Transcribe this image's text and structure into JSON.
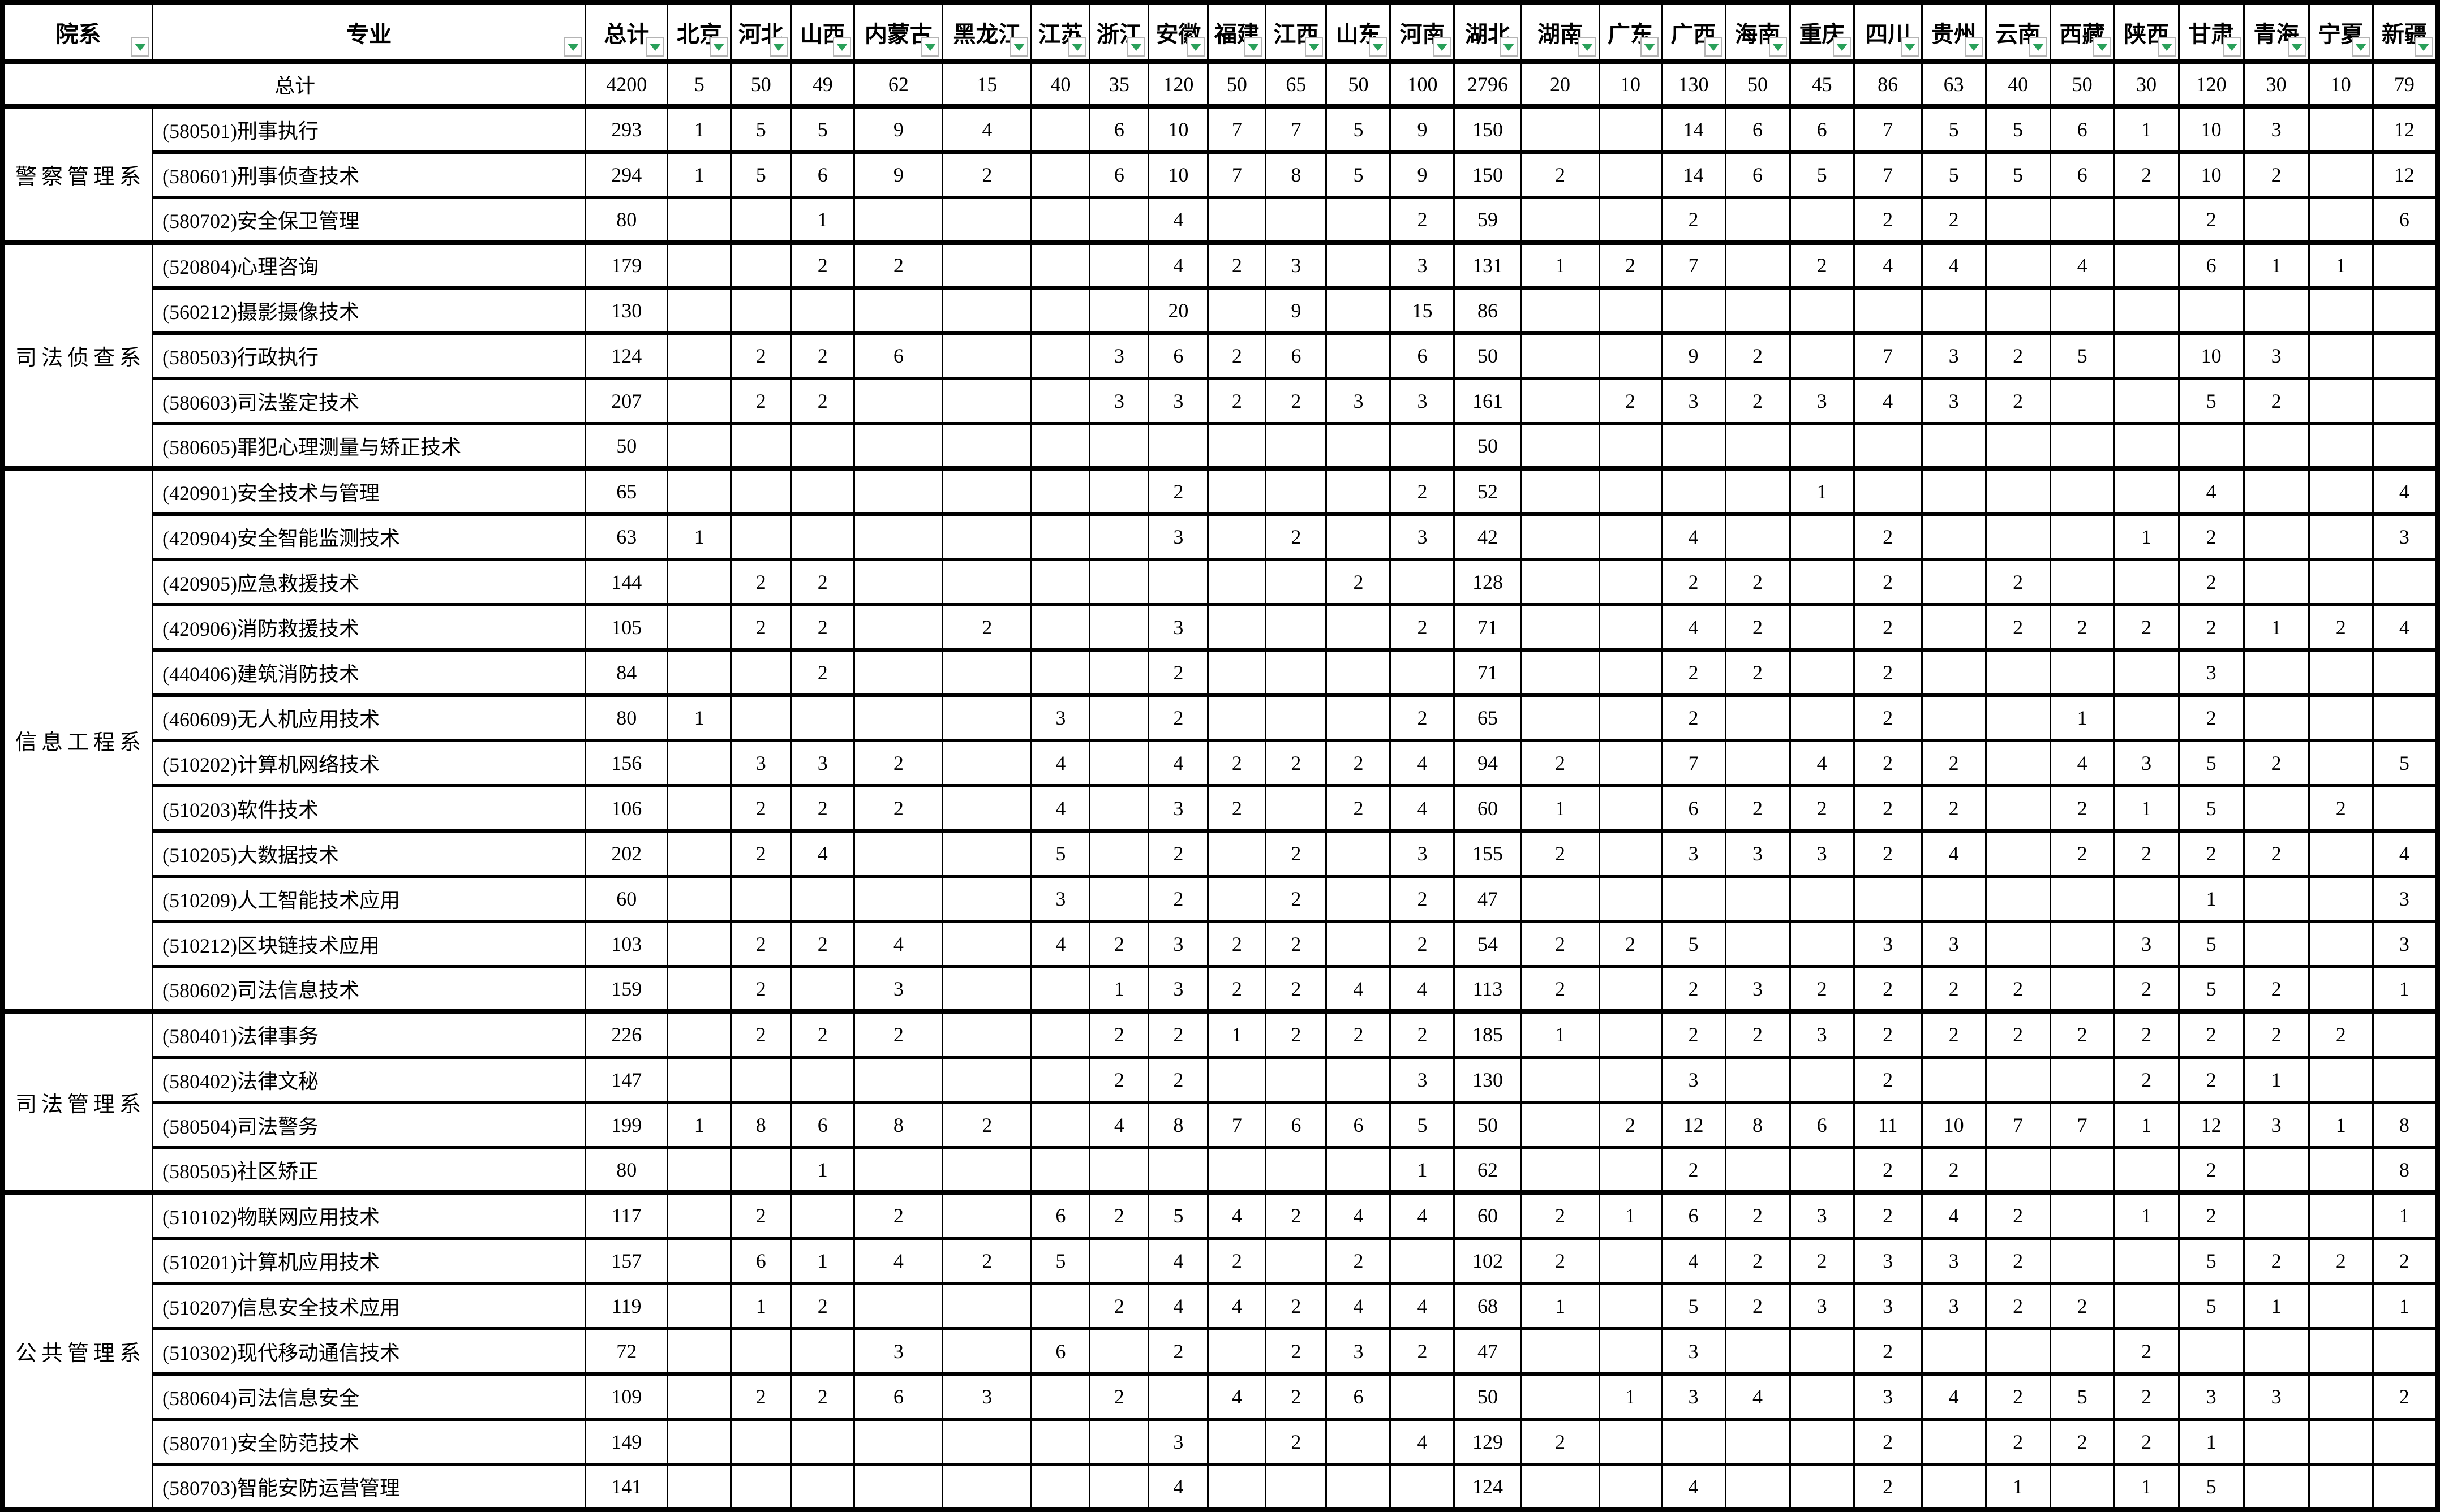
{
  "colors": {
    "filter_arrow": "#2aa05a",
    "border": "#000000",
    "background": "#ffffff"
  },
  "header": {
    "dept": "院系",
    "major": "专业",
    "total": "总计",
    "provinces": [
      "北京",
      "河北",
      "山西",
      "内蒙古",
      "黑龙江",
      "江苏",
      "浙江",
      "安徽",
      "福建",
      "江西",
      "山东",
      "河南",
      "湖北",
      "湖南",
      "广东",
      "广西",
      "海南",
      "重庆",
      "四川",
      "贵州",
      "云南",
      "西藏",
      "陕西",
      "甘肃",
      "青海",
      "宁夏",
      "新疆"
    ]
  },
  "total_row": {
    "label": "总计",
    "total": 4200,
    "values": [
      5,
      50,
      49,
      62,
      15,
      40,
      35,
      120,
      50,
      65,
      50,
      100,
      2796,
      20,
      10,
      130,
      50,
      45,
      86,
      63,
      40,
      50,
      30,
      120,
      30,
      10,
      79
    ]
  },
  "departments": [
    {
      "name": "警察管理系",
      "majors": [
        {
          "name": "(580501)刑事执行",
          "total": 293,
          "values": [
            1,
            5,
            5,
            9,
            4,
            "",
            6,
            10,
            7,
            7,
            5,
            9,
            150,
            "",
            "",
            14,
            6,
            6,
            7,
            5,
            5,
            6,
            1,
            10,
            3,
            "",
            12
          ]
        },
        {
          "name": "(580601)刑事侦查技术",
          "total": 294,
          "values": [
            1,
            5,
            6,
            9,
            2,
            "",
            6,
            10,
            7,
            8,
            5,
            9,
            150,
            2,
            "",
            14,
            6,
            5,
            7,
            5,
            5,
            6,
            2,
            10,
            2,
            "",
            12
          ]
        },
        {
          "name": "(580702)安全保卫管理",
          "total": 80,
          "values": [
            "",
            "",
            1,
            "",
            "",
            "",
            "",
            4,
            "",
            "",
            "",
            2,
            59,
            "",
            "",
            2,
            "",
            "",
            2,
            2,
            "",
            "",
            "",
            2,
            "",
            "",
            6
          ]
        }
      ]
    },
    {
      "name": "司法侦查系",
      "majors": [
        {
          "name": "(520804)心理咨询",
          "total": 179,
          "values": [
            "",
            "",
            2,
            2,
            "",
            "",
            "",
            4,
            2,
            3,
            "",
            3,
            131,
            1,
            2,
            7,
            "",
            2,
            4,
            4,
            "",
            4,
            "",
            6,
            1,
            1,
            ""
          ]
        },
        {
          "name": "(560212)摄影摄像技术",
          "total": 130,
          "values": [
            "",
            "",
            "",
            "",
            "",
            "",
            "",
            20,
            "",
            9,
            "",
            15,
            86,
            "",
            "",
            "",
            "",
            "",
            "",
            "",
            "",
            "",
            "",
            "",
            "",
            "",
            ""
          ]
        },
        {
          "name": "(580503)行政执行",
          "total": 124,
          "values": [
            "",
            2,
            2,
            6,
            "",
            "",
            3,
            6,
            2,
            6,
            "",
            6,
            50,
            "",
            "",
            9,
            2,
            "",
            7,
            3,
            2,
            5,
            "",
            10,
            3,
            "",
            ""
          ]
        },
        {
          "name": "(580603)司法鉴定技术",
          "total": 207,
          "values": [
            "",
            2,
            2,
            "",
            "",
            "",
            3,
            3,
            2,
            2,
            3,
            3,
            161,
            "",
            2,
            3,
            2,
            3,
            4,
            3,
            2,
            "",
            "",
            5,
            2,
            "",
            ""
          ]
        },
        {
          "name": "(580605)罪犯心理测量与矫正技术",
          "total": 50,
          "values": [
            "",
            "",
            "",
            "",
            "",
            "",
            "",
            "",
            "",
            "",
            "",
            "",
            50,
            "",
            "",
            "",
            "",
            "",
            "",
            "",
            "",
            "",
            "",
            "",
            "",
            "",
            ""
          ]
        }
      ]
    },
    {
      "name": "信息工程系",
      "majors": [
        {
          "name": "(420901)安全技术与管理",
          "total": 65,
          "values": [
            "",
            "",
            "",
            "",
            "",
            "",
            "",
            2,
            "",
            "",
            "",
            2,
            52,
            "",
            "",
            "",
            "",
            1,
            "",
            "",
            "",
            "",
            "",
            4,
            "",
            "",
            4
          ]
        },
        {
          "name": "(420904)安全智能监测技术",
          "total": 63,
          "values": [
            1,
            "",
            "",
            "",
            "",
            "",
            "",
            3,
            "",
            2,
            "",
            3,
            42,
            "",
            "",
            4,
            "",
            "",
            2,
            "",
            "",
            "",
            1,
            2,
            "",
            "",
            3
          ]
        },
        {
          "name": "(420905)应急救援技术",
          "total": 144,
          "values": [
            "",
            2,
            2,
            "",
            "",
            "",
            "",
            "",
            "",
            "",
            2,
            "",
            128,
            "",
            "",
            2,
            2,
            "",
            2,
            "",
            2,
            "",
            "",
            2,
            "",
            "",
            ""
          ]
        },
        {
          "name": "(420906)消防救援技术",
          "total": 105,
          "values": [
            "",
            2,
            2,
            "",
            2,
            "",
            "",
            3,
            "",
            "",
            "",
            2,
            71,
            "",
            "",
            4,
            2,
            "",
            2,
            "",
            2,
            2,
            2,
            2,
            1,
            2,
            4
          ]
        },
        {
          "name": "(440406)建筑消防技术",
          "total": 84,
          "values": [
            "",
            "",
            2,
            "",
            "",
            "",
            "",
            2,
            "",
            "",
            "",
            "",
            71,
            "",
            "",
            2,
            2,
            "",
            2,
            "",
            "",
            "",
            "",
            3,
            "",
            "",
            ""
          ]
        },
        {
          "name": "(460609)无人机应用技术",
          "total": 80,
          "values": [
            1,
            "",
            "",
            "",
            "",
            3,
            "",
            2,
            "",
            "",
            "",
            2,
            65,
            "",
            "",
            2,
            "",
            "",
            2,
            "",
            "",
            1,
            "",
            2,
            "",
            "",
            ""
          ]
        },
        {
          "name": "(510202)计算机网络技术",
          "total": 156,
          "values": [
            "",
            3,
            3,
            2,
            "",
            4,
            "",
            4,
            2,
            2,
            2,
            4,
            94,
            2,
            "",
            7,
            "",
            4,
            2,
            2,
            "",
            4,
            3,
            5,
            2,
            "",
            5
          ]
        },
        {
          "name": "(510203)软件技术",
          "total": 106,
          "values": [
            "",
            2,
            2,
            2,
            "",
            4,
            "",
            3,
            2,
            "",
            2,
            4,
            60,
            1,
            "",
            6,
            2,
            2,
            2,
            2,
            "",
            2,
            1,
            5,
            "",
            2,
            ""
          ]
        },
        {
          "name": "(510205)大数据技术",
          "total": 202,
          "values": [
            "",
            2,
            4,
            "",
            "",
            5,
            "",
            2,
            "",
            2,
            "",
            3,
            155,
            2,
            "",
            3,
            3,
            3,
            2,
            4,
            "",
            2,
            2,
            2,
            2,
            "",
            4
          ]
        },
        {
          "name": "(510209)人工智能技术应用",
          "total": 60,
          "values": [
            "",
            "",
            "",
            "",
            "",
            3,
            "",
            2,
            "",
            2,
            "",
            2,
            47,
            "",
            "",
            "",
            "",
            "",
            "",
            "",
            "",
            "",
            "",
            1,
            "",
            "",
            3
          ]
        },
        {
          "name": "(510212)区块链技术应用",
          "total": 103,
          "values": [
            "",
            2,
            2,
            4,
            "",
            4,
            2,
            3,
            2,
            2,
            "",
            2,
            54,
            2,
            2,
            5,
            "",
            "",
            3,
            3,
            "",
            "",
            3,
            5,
            "",
            "",
            3
          ]
        },
        {
          "name": "(580602)司法信息技术",
          "total": 159,
          "values": [
            "",
            2,
            "",
            3,
            "",
            "",
            1,
            3,
            2,
            2,
            4,
            4,
            113,
            2,
            "",
            2,
            3,
            2,
            2,
            2,
            2,
            "",
            2,
            5,
            2,
            "",
            1
          ]
        }
      ]
    },
    {
      "name": "司法管理系",
      "majors": [
        {
          "name": "(580401)法律事务",
          "total": 226,
          "values": [
            "",
            2,
            2,
            2,
            "",
            "",
            2,
            2,
            1,
            2,
            2,
            2,
            185,
            1,
            "",
            2,
            2,
            3,
            2,
            2,
            2,
            2,
            2,
            2,
            2,
            2,
            ""
          ]
        },
        {
          "name": "(580402)法律文秘",
          "total": 147,
          "values": [
            "",
            "",
            "",
            "",
            "",
            "",
            2,
            2,
            "",
            "",
            "",
            3,
            130,
            "",
            "",
            3,
            "",
            "",
            2,
            "",
            "",
            "",
            2,
            2,
            1,
            "",
            ""
          ]
        },
        {
          "name": "(580504)司法警务",
          "total": 199,
          "values": [
            1,
            8,
            6,
            8,
            2,
            "",
            4,
            8,
            7,
            6,
            6,
            5,
            50,
            "",
            2,
            12,
            8,
            6,
            11,
            10,
            7,
            7,
            1,
            12,
            3,
            1,
            8
          ]
        },
        {
          "name": "(580505)社区矫正",
          "total": 80,
          "values": [
            "",
            "",
            1,
            "",
            "",
            "",
            "",
            "",
            "",
            "",
            "",
            1,
            62,
            "",
            "",
            2,
            "",
            "",
            2,
            2,
            "",
            "",
            "",
            2,
            "",
            "",
            8
          ]
        }
      ]
    },
    {
      "name": "公共管理系",
      "majors": [
        {
          "name": "(510102)物联网应用技术",
          "total": 117,
          "values": [
            "",
            2,
            "",
            2,
            "",
            6,
            2,
            5,
            4,
            2,
            4,
            4,
            60,
            2,
            1,
            6,
            2,
            3,
            2,
            4,
            2,
            "",
            1,
            2,
            "",
            "",
            1
          ]
        },
        {
          "name": "(510201)计算机应用技术",
          "total": 157,
          "values": [
            "",
            6,
            1,
            4,
            2,
            5,
            "",
            4,
            2,
            "",
            2,
            "",
            102,
            2,
            "",
            4,
            2,
            2,
            3,
            3,
            2,
            "",
            "",
            5,
            2,
            2,
            2
          ]
        },
        {
          "name": "(510207)信息安全技术应用",
          "total": 119,
          "values": [
            "",
            1,
            2,
            "",
            "",
            "",
            2,
            4,
            4,
            2,
            4,
            4,
            68,
            1,
            "",
            5,
            2,
            3,
            3,
            3,
            2,
            2,
            "",
            5,
            1,
            "",
            1
          ]
        },
        {
          "name": "(510302)现代移动通信技术",
          "total": 72,
          "values": [
            "",
            "",
            "",
            3,
            "",
            6,
            "",
            2,
            "",
            2,
            3,
            2,
            47,
            "",
            "",
            3,
            "",
            "",
            2,
            "",
            "",
            "",
            2,
            "",
            "",
            "",
            ""
          ]
        },
        {
          "name": "(580604)司法信息安全",
          "total": 109,
          "values": [
            "",
            2,
            2,
            6,
            3,
            "",
            2,
            "",
            4,
            2,
            6,
            "",
            50,
            "",
            1,
            3,
            4,
            "",
            3,
            4,
            2,
            5,
            2,
            3,
            3,
            "",
            2
          ]
        },
        {
          "name": "(580701)安全防范技术",
          "total": 149,
          "values": [
            "",
            "",
            "",
            "",
            "",
            "",
            "",
            3,
            "",
            2,
            "",
            4,
            129,
            2,
            "",
            "",
            "",
            "",
            2,
            "",
            2,
            2,
            2,
            1,
            "",
            "",
            ""
          ]
        },
        {
          "name": "(580703)智能安防运营管理",
          "total": 141,
          "values": [
            "",
            "",
            "",
            "",
            "",
            "",
            "",
            4,
            "",
            "",
            "",
            "",
            124,
            "",
            "",
            4,
            "",
            "",
            2,
            "",
            1,
            "",
            1,
            5,
            "",
            "",
            ""
          ]
        }
      ]
    }
  ]
}
